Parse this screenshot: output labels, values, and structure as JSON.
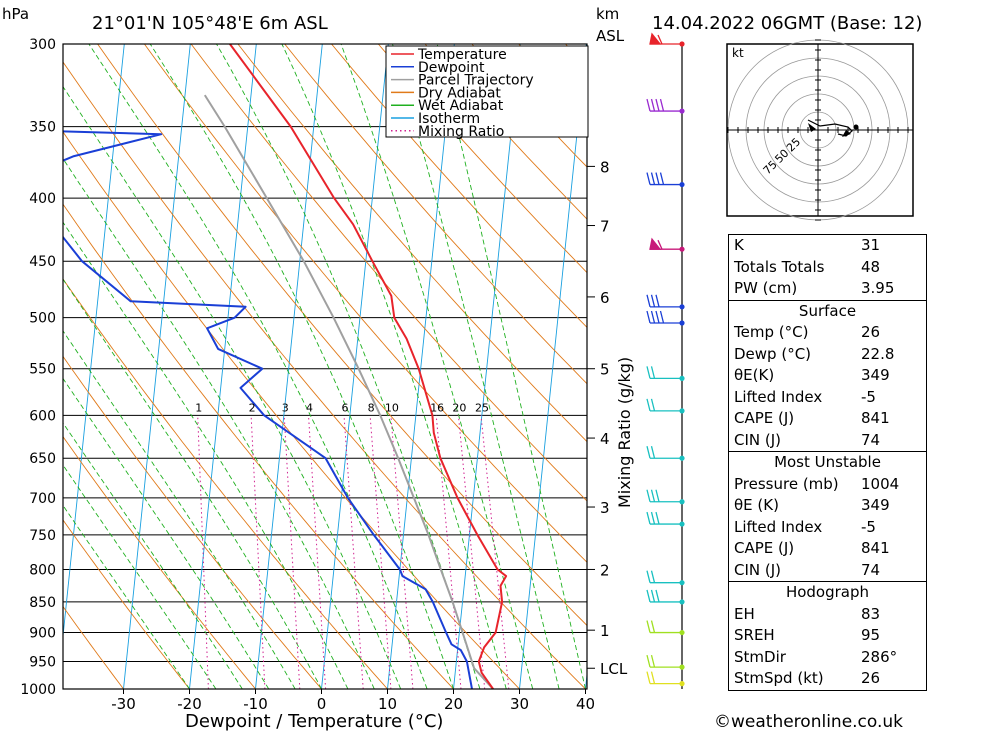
{
  "header": {
    "pressure_unit": "hPa",
    "location": "21°01'N 105°48'E 6m ASL",
    "height_unit_1": "km",
    "height_unit_2": "ASL",
    "datetime": "14.04.2022 06GMT (Base: 12)"
  },
  "chart_data": {
    "type": "line",
    "subtype": "skew-t log-p",
    "xlabel": "Dewpoint / Temperature (°C)",
    "ylabel_right": "Mixing Ratio (g/kg)",
    "x_ticks": [
      -30,
      -20,
      -10,
      0,
      10,
      20,
      30,
      40
    ],
    "p_levels": [
      300,
      350,
      400,
      450,
      500,
      550,
      600,
      650,
      700,
      750,
      800,
      850,
      900,
      950,
      1000
    ],
    "km_ticks": [
      {
        "label": "8",
        "p": 377
      },
      {
        "label": "7",
        "p": 421
      },
      {
        "label": "6",
        "p": 481
      },
      {
        "label": "5",
        "p": 550
      },
      {
        "label": "4",
        "p": 626
      },
      {
        "label": "3",
        "p": 712
      },
      {
        "label": "2",
        "p": 800
      },
      {
        "label": "1",
        "p": 896
      },
      {
        "label": "LCL",
        "p": 962
      }
    ],
    "mixing_ratio_labels": [
      "1",
      "2",
      "3",
      "4",
      "6",
      "8",
      "10",
      "16",
      "20",
      "25"
    ],
    "mixing_ratio_values": [
      1,
      2,
      3,
      4,
      6,
      8,
      10,
      16,
      20,
      25
    ],
    "legend": [
      {
        "name": "Temperature",
        "color": "#e8242b"
      },
      {
        "name": "Dewpoint",
        "color": "#1a3fd6"
      },
      {
        "name": "Parcel Trajectory",
        "color": "#a0a0a0"
      },
      {
        "name": "Dry Adiabat",
        "color": "#e07a1a"
      },
      {
        "name": "Wet Adiabat",
        "color": "#20b020"
      },
      {
        "name": "Isotherm",
        "color": "#1aa0e0"
      },
      {
        "name": "Mixing Ratio",
        "color": "#d02090"
      }
    ],
    "temperature": [
      {
        "p": 1000,
        "t": 26
      },
      {
        "p": 970,
        "t": 24
      },
      {
        "p": 950,
        "t": 23.4
      },
      {
        "p": 925,
        "t": 24
      },
      {
        "p": 900,
        "t": 25.5
      },
      {
        "p": 850,
        "t": 26
      },
      {
        "p": 825,
        "t": 25.5
      },
      {
        "p": 810,
        "t": 26.2
      },
      {
        "p": 800,
        "t": 24.8
      },
      {
        "p": 750,
        "t": 21.2
      },
      {
        "p": 700,
        "t": 17.6
      },
      {
        "p": 650,
        "t": 14.4
      },
      {
        "p": 620,
        "t": 13
      },
      {
        "p": 600,
        "t": 12.5
      },
      {
        "p": 550,
        "t": 9.7
      },
      {
        "p": 520,
        "t": 7.4
      },
      {
        "p": 500,
        "t": 5.2
      },
      {
        "p": 490,
        "t": 4.8
      },
      {
        "p": 480,
        "t": 4.4
      },
      {
        "p": 450,
        "t": 1
      },
      {
        "p": 420,
        "t": -2.5
      },
      {
        "p": 400,
        "t": -5.8
      },
      {
        "p": 350,
        "t": -13.5
      },
      {
        "p": 330,
        "t": -17.5
      },
      {
        "p": 300,
        "t": -24
      }
    ],
    "dewpoint": [
      {
        "p": 1000,
        "t": 22.8
      },
      {
        "p": 950,
        "t": 21.6
      },
      {
        "p": 930,
        "t": 20.5
      },
      {
        "p": 920,
        "t": 19
      },
      {
        "p": 900,
        "t": 18
      },
      {
        "p": 850,
        "t": 15.5
      },
      {
        "p": 830,
        "t": 14.2
      },
      {
        "p": 810,
        "t": 10.5
      },
      {
        "p": 800,
        "t": 10
      },
      {
        "p": 750,
        "t": 5.5
      },
      {
        "p": 700,
        "t": 1
      },
      {
        "p": 650,
        "t": -3
      },
      {
        "p": 600,
        "t": -13
      },
      {
        "p": 570,
        "t": -17
      },
      {
        "p": 550,
        "t": -14
      },
      {
        "p": 530,
        "t": -21
      },
      {
        "p": 510,
        "t": -23
      },
      {
        "p": 500,
        "t": -19
      },
      {
        "p": 490,
        "t": -17.5
      },
      {
        "p": 485,
        "t": -35
      },
      {
        "p": 450,
        "t": -43
      },
      {
        "p": 420,
        "t": -48
      },
      {
        "p": 400,
        "t": -56
      },
      {
        "p": 397,
        "t": -59
      },
      {
        "p": 370,
        "t": -46
      },
      {
        "p": 355,
        "t": -33
      },
      {
        "p": 352,
        "t": -57
      },
      {
        "p": 340,
        "t": -50
      },
      {
        "p": 320,
        "t": -55
      },
      {
        "p": 300,
        "t": -70
      }
    ],
    "parcel": [
      {
        "p": 1000,
        "t": 26
      },
      {
        "p": 962,
        "t": 22.8
      },
      {
        "p": 900,
        "t": 20.5
      },
      {
        "p": 850,
        "t": 18.5
      },
      {
        "p": 800,
        "t": 16.2
      },
      {
        "p": 750,
        "t": 13.8
      },
      {
        "p": 700,
        "t": 11
      },
      {
        "p": 650,
        "t": 8
      },
      {
        "p": 600,
        "t": 4.6
      },
      {
        "p": 550,
        "t": 0.6
      },
      {
        "p": 500,
        "t": -4
      },
      {
        "p": 450,
        "t": -9.4
      },
      {
        "p": 400,
        "t": -16
      },
      {
        "p": 350,
        "t": -23.5
      },
      {
        "p": 330,
        "t": -27
      }
    ],
    "wind_barbs": [
      {
        "p": 300,
        "color": "#e8242b",
        "flag": "pennant"
      },
      {
        "p": 340,
        "color": "#9a2ad0",
        "flag": "barbs4"
      },
      {
        "p": 390,
        "color": "#1a3fd6",
        "flag": "barbs4"
      },
      {
        "p": 440,
        "color": "#c8187a",
        "flag": "pennant"
      },
      {
        "p": 490,
        "color": "#1a3fd6",
        "flag": "barbs3"
      },
      {
        "p": 505,
        "color": "#1a3fd6",
        "flag": "barbs4"
      },
      {
        "p": 560,
        "color": "#18c0c0",
        "flag": "barbs2"
      },
      {
        "p": 595,
        "color": "#18c0c0",
        "flag": "barbs2"
      },
      {
        "p": 650,
        "color": "#18c0c0",
        "flag": "barbs2"
      },
      {
        "p": 705,
        "color": "#18c0c0",
        "flag": "barbs3"
      },
      {
        "p": 735,
        "color": "#18c0c0",
        "flag": "barbs3"
      },
      {
        "p": 820,
        "color": "#18c0c0",
        "flag": "barbs2"
      },
      {
        "p": 850,
        "color": "#18c0c0",
        "flag": "barbs3"
      },
      {
        "p": 900,
        "color": "#a0e020",
        "flag": "barbs2"
      },
      {
        "p": 960,
        "color": "#a0e020",
        "flag": "barbs2"
      },
      {
        "p": 990,
        "color": "#e0e020",
        "flag": "barbs2"
      }
    ],
    "hodograph": {
      "unit": "kt",
      "ring_labels": [
        "25",
        "50",
        "75"
      ]
    }
  },
  "indices": {
    "top": [
      {
        "label": "K",
        "value": "31"
      },
      {
        "label": "Totals Totals",
        "value": "48"
      },
      {
        "label": "PW (cm)",
        "value": "3.95"
      }
    ],
    "surface": {
      "title": "Surface",
      "rows": [
        {
          "label": "Temp (°C)",
          "value": "26"
        },
        {
          "label": "Dewp (°C)",
          "value": "22.8"
        },
        {
          "label": "θE(K)",
          "value": "349"
        },
        {
          "label": "Lifted Index",
          "value": "-5"
        },
        {
          "label": "CAPE (J)",
          "value": "841"
        },
        {
          "label": "CIN (J)",
          "value": "74"
        }
      ]
    },
    "most_unstable": {
      "title": "Most Unstable",
      "rows": [
        {
          "label": "Pressure (mb)",
          "value": "1004"
        },
        {
          "label": "θE (K)",
          "value": "349"
        },
        {
          "label": "Lifted Index",
          "value": "-5"
        },
        {
          "label": "CAPE (J)",
          "value": "841"
        },
        {
          "label": "CIN (J)",
          "value": "74"
        }
      ]
    },
    "hodograph": {
      "title": "Hodograph",
      "rows": [
        {
          "label": "EH",
          "value": "83"
        },
        {
          "label": "SREH",
          "value": "95"
        },
        {
          "label": "StmDir",
          "value": "286°"
        },
        {
          "label": "StmSpd (kt)",
          "value": "26"
        }
      ]
    }
  },
  "footer": {
    "copyright": "©weatheronline.co.uk"
  }
}
